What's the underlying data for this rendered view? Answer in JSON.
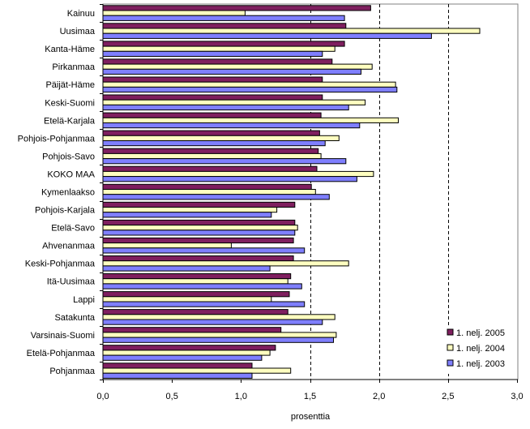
{
  "chart_data": {
    "type": "bar",
    "orientation": "horizontal",
    "title": "",
    "xlabel": "prosenttia",
    "ylabel": "",
    "xlim": [
      0,
      3.0
    ],
    "x_ticks": [
      "0,0",
      "0,5",
      "1,0",
      "1,5",
      "2,0",
      "2,5",
      "3,0"
    ],
    "x_tick_values": [
      0,
      0.5,
      1.0,
      1.5,
      2.0,
      2.5,
      3.0
    ],
    "grid": "vertical dashed at 1,5 / 2,0 / 2,5",
    "legend_position": "bottom-right",
    "categories": [
      "Kainuu",
      "Uusimaa",
      "Kanta-Häme",
      "Pirkanmaa",
      "Päijät-Häme",
      "Keski-Suomi",
      "Etelä-Karjala",
      "Pohjois-Pohjanmaa",
      "Pohjois-Savo",
      "KOKO MAA",
      "Kymenlaakso",
      "Pohjois-Karjala",
      "Etelä-Savo",
      "Ahvenanmaa",
      "Keski-Pohjanmaa",
      "Itä-Uusimaa",
      "Lappi",
      "Satakunta",
      "Varsinais-Suomi",
      "Etelä-Pohjanmaa",
      "Pohjanmaa"
    ],
    "series": [
      {
        "name": "1. nelj. 2005",
        "color": "#7f1f5f",
        "values": [
          1.94,
          1.76,
          1.75,
          1.66,
          1.59,
          1.59,
          1.58,
          1.57,
          1.56,
          1.55,
          1.51,
          1.39,
          1.39,
          1.38,
          1.38,
          1.36,
          1.35,
          1.34,
          1.29,
          1.25,
          1.08
        ]
      },
      {
        "name": "1. nelj. 2004",
        "color": "#ffffc0",
        "values": [
          1.03,
          2.73,
          1.68,
          1.95,
          2.12,
          1.9,
          2.14,
          1.71,
          1.58,
          1.96,
          1.54,
          1.26,
          1.41,
          0.93,
          1.78,
          1.34,
          1.22,
          1.68,
          1.69,
          1.21,
          1.36
        ]
      },
      {
        "name": "1. nelj. 2003",
        "color": "#7f7fff",
        "values": [
          1.75,
          2.38,
          1.59,
          1.87,
          2.13,
          1.78,
          1.86,
          1.61,
          1.76,
          1.84,
          1.64,
          1.22,
          1.39,
          1.46,
          1.21,
          1.44,
          1.46,
          1.59,
          1.67,
          1.15,
          1.08
        ]
      }
    ]
  }
}
